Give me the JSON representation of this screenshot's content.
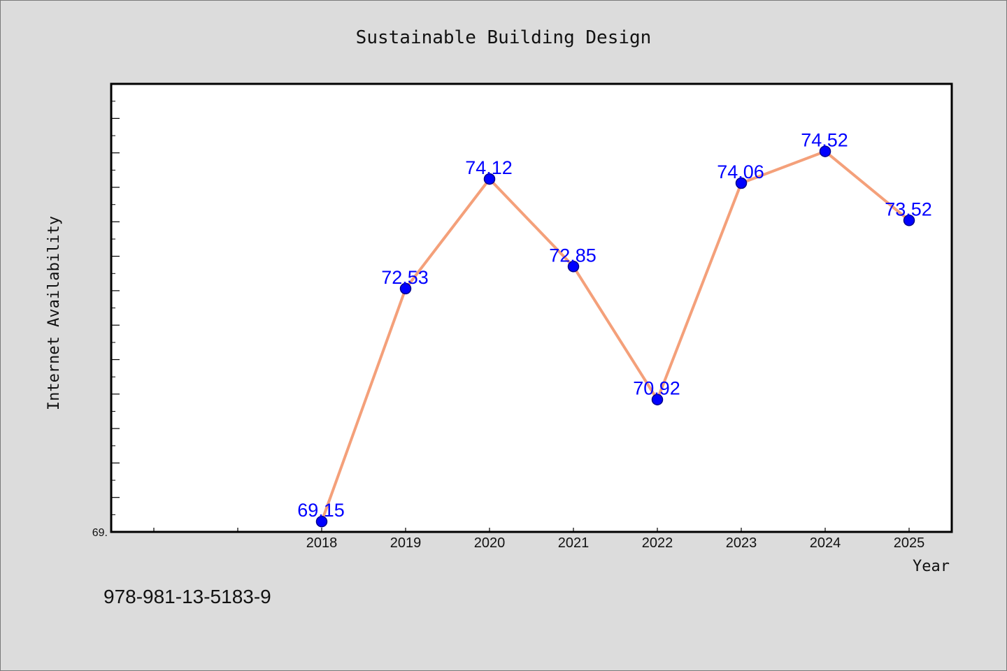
{
  "chart_data": {
    "type": "line",
    "title": "Sustainable Building Design",
    "xlabel": "Year",
    "ylabel": "Internet Availability",
    "categories": [
      "2018",
      "2019",
      "2020",
      "2021",
      "2022",
      "2023",
      "2024",
      "2025"
    ],
    "series": [
      {
        "values": [
          69.15,
          72.53,
          74.12,
          72.85,
          70.92,
          74.06,
          74.52,
          73.52
        ],
        "data_labels": [
          "69.15",
          "72.53",
          "74.12",
          "72.85",
          "70.92",
          "74.06",
          "74.52",
          "73.52"
        ]
      }
    ],
    "ylim": [
      69.0,
      75.5
    ],
    "y_tick_label": "69.",
    "grid": false,
    "line_color": "#f4a07a",
    "marker_color": "#0000ff",
    "data_label_color": "#0000ff"
  },
  "footnote": "978-981-13-5183-9"
}
